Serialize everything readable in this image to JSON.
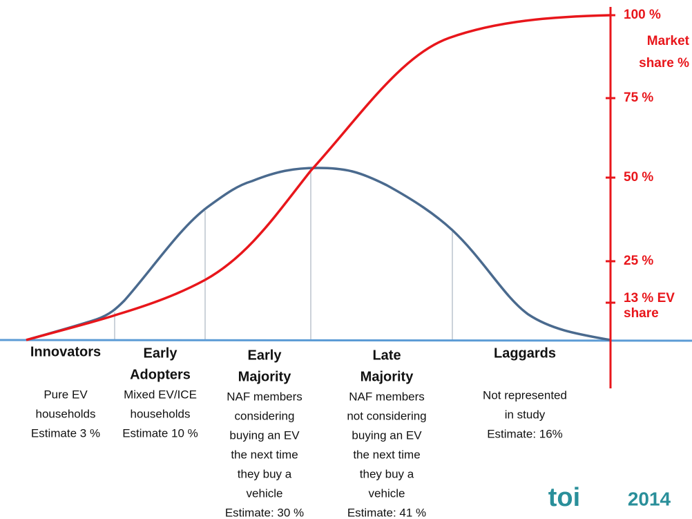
{
  "axis": {
    "ticks": [
      "100 %",
      "75 %",
      "50 %",
      "25 %"
    ],
    "label": [
      "Market",
      "share %"
    ],
    "ev_share": [
      "13 % EV",
      "share"
    ]
  },
  "segments": [
    {
      "title": [
        "Innovators"
      ],
      "description": [
        "Pure EV",
        "households",
        "Estimate 3 %"
      ]
    },
    {
      "title": [
        "Early",
        "Adopters"
      ],
      "description": [
        "Mixed EV/ICE",
        "households",
        "Estimate 10 %"
      ]
    },
    {
      "title": [
        "Early",
        "Majority"
      ],
      "description": [
        "NAF members",
        "considering",
        "buying an EV",
        "the next time",
        "they buy a",
        "vehicle",
        "Estimate: 30 %"
      ]
    },
    {
      "title": [
        "Late",
        "Majority"
      ],
      "description": [
        "NAF members",
        "not considering",
        "buying an EV",
        "the next time",
        "they buy a",
        "vehicle",
        "Estimate: 41 %"
      ]
    },
    {
      "title": [
        "Laggards"
      ],
      "description": [
        "Not represented",
        "in study",
        "Estimate: 16%"
      ]
    }
  ],
  "logo": {
    "name": "toi",
    "year": "2014"
  }
}
